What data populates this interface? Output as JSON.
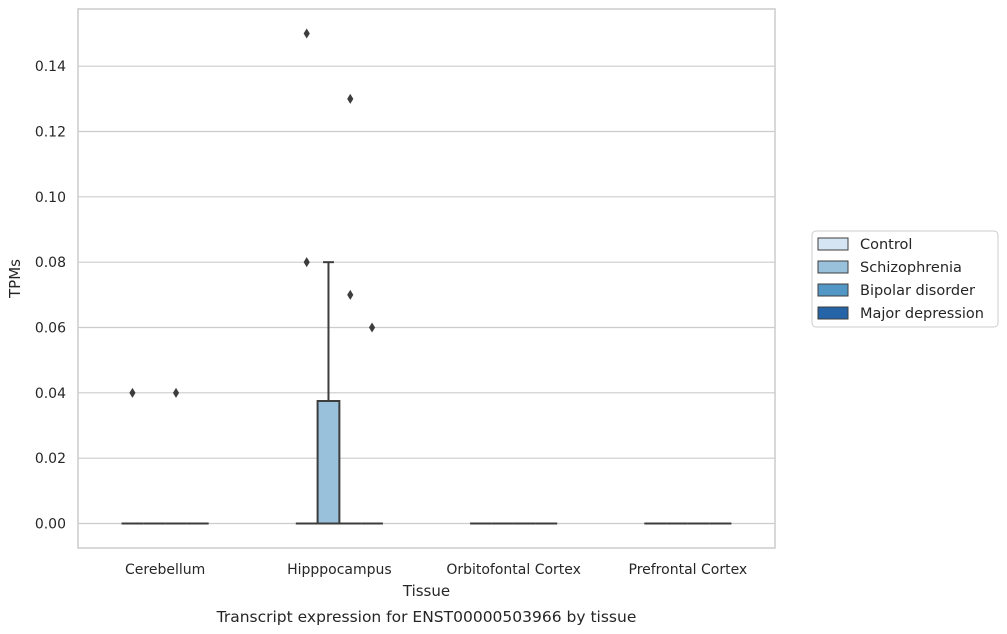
{
  "chart_data": {
    "type": "box",
    "caption": "Transcript expression for ENST00000503966 by tissue",
    "xlabel": "Tissue",
    "ylabel": "TPMs",
    "ylim": [
      -0.0075,
      0.1575
    ],
    "yticks": [
      0.0,
      0.02,
      0.04,
      0.06,
      0.08,
      0.1,
      0.12,
      0.14
    ],
    "ytick_labels": [
      "0.00",
      "0.02",
      "0.04",
      "0.06",
      "0.08",
      "0.10",
      "0.12",
      "0.14"
    ],
    "grid": "horizontal",
    "legend_placement": "right",
    "categories": [
      "Cerebellum",
      "Hipppocampus",
      "Orbitofontal Cortex",
      "Prefrontal Cortex"
    ],
    "series": [
      {
        "name": "Control",
        "color": "#d6e5f3",
        "boxes": [
          {
            "q1": 0,
            "median": 0,
            "q3": 0,
            "whisker_low": 0,
            "whisker_high": 0,
            "outliers": [
              0.04
            ]
          },
          {
            "q1": 0,
            "median": 0,
            "q3": 0,
            "whisker_low": 0,
            "whisker_high": 0,
            "outliers": [
              0.15,
              0.08
            ]
          },
          {
            "q1": 0,
            "median": 0,
            "q3": 0,
            "whisker_low": 0,
            "whisker_high": 0,
            "outliers": []
          },
          {
            "q1": 0,
            "median": 0,
            "q3": 0,
            "whisker_low": 0,
            "whisker_high": 0,
            "outliers": []
          }
        ]
      },
      {
        "name": "Schizophrenia",
        "color": "#9ac1dc",
        "boxes": [
          {
            "q1": 0,
            "median": 0,
            "q3": 0,
            "whisker_low": 0,
            "whisker_high": 0,
            "outliers": []
          },
          {
            "q1": 0,
            "median": 0,
            "q3": 0.0375,
            "whisker_low": 0,
            "whisker_high": 0.08,
            "outliers": []
          },
          {
            "q1": 0,
            "median": 0,
            "q3": 0,
            "whisker_low": 0,
            "whisker_high": 0,
            "outliers": []
          },
          {
            "q1": 0,
            "median": 0,
            "q3": 0,
            "whisker_low": 0,
            "whisker_high": 0,
            "outliers": []
          }
        ]
      },
      {
        "name": "Bipolar disorder",
        "color": "#5297c6",
        "boxes": [
          {
            "q1": 0,
            "median": 0,
            "q3": 0,
            "whisker_low": 0,
            "whisker_high": 0,
            "outliers": [
              0.04
            ]
          },
          {
            "q1": 0,
            "median": 0,
            "q3": 0,
            "whisker_low": 0,
            "whisker_high": 0,
            "outliers": [
              0.13,
              0.07
            ]
          },
          {
            "q1": 0,
            "median": 0,
            "q3": 0,
            "whisker_low": 0,
            "whisker_high": 0,
            "outliers": []
          },
          {
            "q1": 0,
            "median": 0,
            "q3": 0,
            "whisker_low": 0,
            "whisker_high": 0,
            "outliers": []
          }
        ]
      },
      {
        "name": "Major depression",
        "color": "#2565a7",
        "boxes": [
          {
            "q1": 0,
            "median": 0,
            "q3": 0,
            "whisker_low": 0,
            "whisker_high": 0,
            "outliers": []
          },
          {
            "q1": 0,
            "median": 0,
            "q3": 0,
            "whisker_low": 0,
            "whisker_high": 0,
            "outliers": [
              0.06
            ]
          },
          {
            "q1": 0,
            "median": 0,
            "q3": 0,
            "whisker_low": 0,
            "whisker_high": 0,
            "outliers": []
          },
          {
            "q1": 0,
            "median": 0,
            "q3": 0,
            "whisker_low": 0,
            "whisker_high": 0,
            "outliers": []
          }
        ]
      }
    ]
  }
}
